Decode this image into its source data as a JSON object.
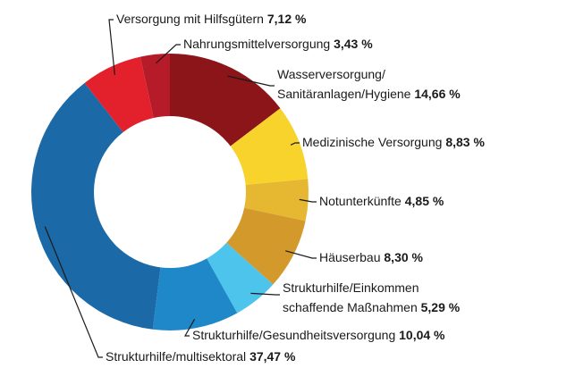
{
  "chart_data": {
    "type": "donut",
    "categories": [
      [
        "Wasserversorgung/",
        "Sanitäranlagen/Hygiene"
      ],
      [
        "Medizinische Versorgung"
      ],
      [
        "Notunterkünfte"
      ],
      [
        "Häuserbau"
      ],
      [
        "Strukturhilfe/Einkommen",
        "schaffende Maßnahmen"
      ],
      [
        "Strukturhilfe/Gesundheitsversorgung"
      ],
      [
        "Strukturhilfe/multisektoral"
      ],
      [
        "Versorgung mit Hilfsgütern"
      ],
      [
        "Nahrungsmittelversorgung"
      ]
    ],
    "values": [
      14.66,
      8.83,
      4.85,
      8.3,
      5.29,
      10.04,
      37.47,
      7.12,
      3.43
    ],
    "value_labels": [
      "14,66 %",
      "8,83 %",
      "4,85 %",
      "8,30 %",
      "5,29 %",
      "10,04 %",
      "37,47 %",
      "7,12 %",
      "3,43 %"
    ],
    "colors": [
      "#8c1519",
      "#f8d32c",
      "#e6b731",
      "#d39a2b",
      "#4dc4ec",
      "#1f88c9",
      "#1b69a7",
      "#e3212d",
      "#b51b28"
    ]
  }
}
